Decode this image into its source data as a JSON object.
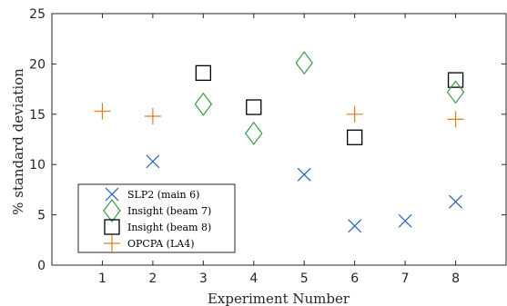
{
  "chart_data": {
    "type": "scatter",
    "xlabel": "Experiment Number",
    "ylabel": "% standard deviation",
    "xlim": [
      0,
      9
    ],
    "ylim": [
      0,
      25
    ],
    "xticks": [
      1,
      2,
      3,
      4,
      5,
      6,
      7,
      8
    ],
    "yticks": [
      0,
      5,
      10,
      15,
      20,
      25
    ],
    "grid": false,
    "legend_position": "bottom-left",
    "series": [
      {
        "name": "SLP2 (main 6)",
        "marker": "x",
        "color": "#1f5fb0",
        "points": [
          [
            2,
            10.3
          ],
          [
            5,
            9.0
          ],
          [
            6,
            3.9
          ],
          [
            7,
            4.4
          ],
          [
            8,
            6.3
          ]
        ]
      },
      {
        "name": "Insight (beam 7)",
        "marker": "diamond",
        "color": "#3a9a4a",
        "points": [
          [
            3,
            16.0
          ],
          [
            4,
            13.1
          ],
          [
            5,
            20.1
          ],
          [
            8,
            17.2
          ]
        ]
      },
      {
        "name": "Insight (beam 8)",
        "marker": "square",
        "color": "#000000",
        "points": [
          [
            3,
            19.1
          ],
          [
            4,
            15.7
          ],
          [
            6,
            12.7
          ],
          [
            8,
            18.4
          ]
        ]
      },
      {
        "name": "OPCPA (LA4)",
        "marker": "plus",
        "color": "#e07b20",
        "points": [
          [
            1,
            15.3
          ],
          [
            2,
            14.8
          ],
          [
            6,
            15.0
          ],
          [
            8,
            14.5
          ]
        ]
      }
    ]
  }
}
